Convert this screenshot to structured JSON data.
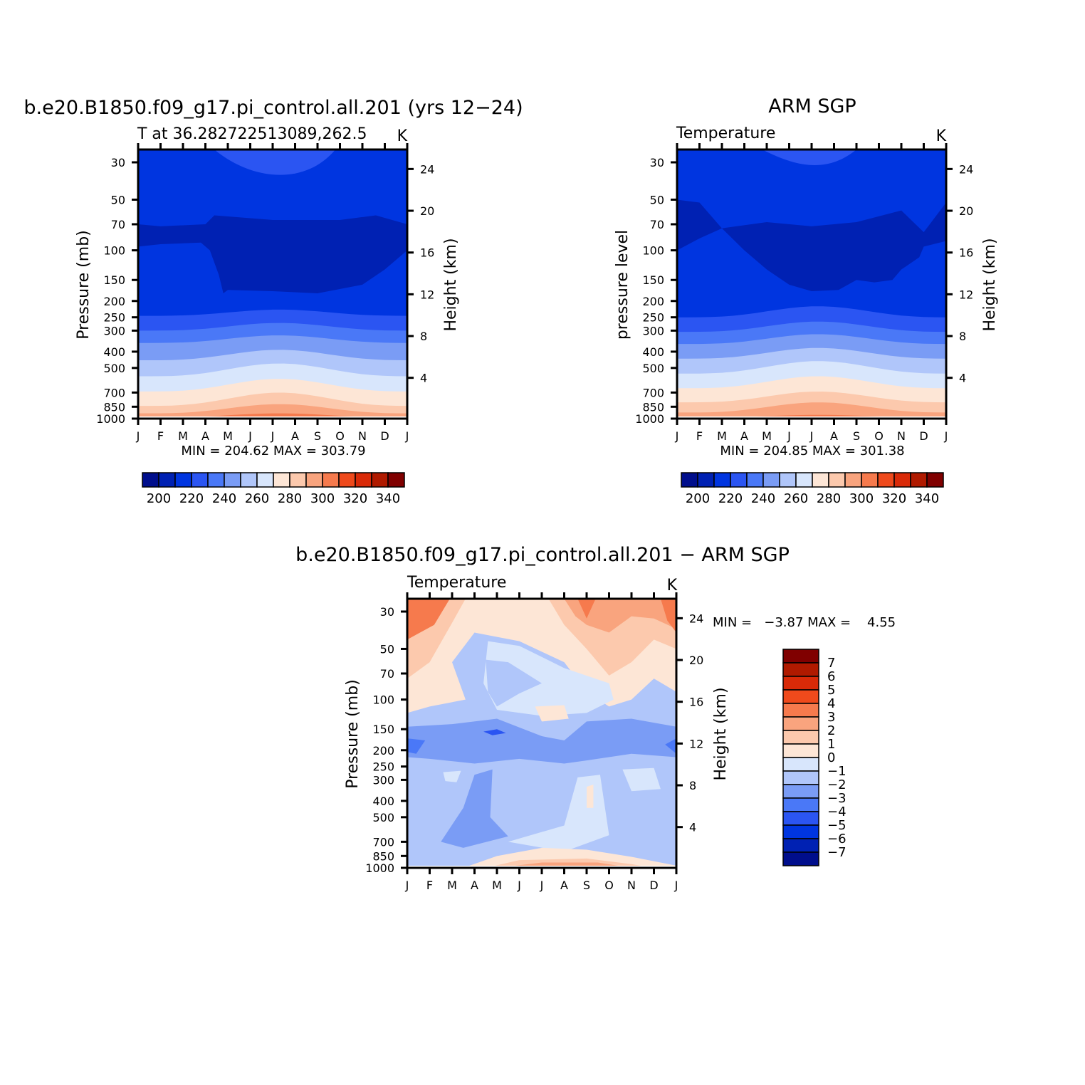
{
  "month_labels": [
    "J",
    "F",
    "M",
    "A",
    "M",
    "J",
    "J",
    "A",
    "S",
    "O",
    "N",
    "D",
    "J"
  ],
  "pressure_ticks": [
    30,
    50,
    70,
    100,
    150,
    200,
    250,
    300,
    400,
    500,
    700,
    850,
    1000
  ],
  "height_ticks": [
    4,
    8,
    12,
    16,
    20,
    24
  ],
  "right_axis_label": "Height (km)",
  "abs_palette": [
    "#000e8c",
    "#0021b3",
    "#0035e0",
    "#2b55f2",
    "#4a78f7",
    "#7a9cf5",
    "#b0c6fa",
    "#d8e6fc",
    "#fde6d6",
    "#fcc9ad",
    "#f9a47e",
    "#f67a4d",
    "#ef4a1c",
    "#d92a08",
    "#b01a00",
    "#800000"
  ],
  "diff_palette": [
    "#000e8c",
    "#0021b3",
    "#0035e0",
    "#2b55f2",
    "#4a78f7",
    "#7a9cf5",
    "#b0c6fa",
    "#d8e6fc",
    "#fde6d6",
    "#fcc9ad",
    "#f9a47e",
    "#f67a4d",
    "#ef4a1c",
    "#d92a08",
    "#b01a00",
    "#800000"
  ],
  "panels": [
    {
      "id": "model",
      "title": "b.e20.B1850.f09_g17.pi_control.all.201 (yrs 12−24)",
      "left_label": "T at 36.282722513089,262.5",
      "units": "K",
      "y_axis_label": "Pressure (mb)",
      "stats": "MIN = 204.62 MAX = 303.79",
      "colorbar_labels": [
        "200",
        "220",
        "240",
        "260",
        "280",
        "300",
        "320",
        "340"
      ]
    },
    {
      "id": "obs",
      "title": "ARM SGP",
      "left_label": "Temperature",
      "units": "K",
      "y_axis_label": "pressure level",
      "stats": "MIN = 204.85 MAX = 301.38",
      "colorbar_labels": [
        "200",
        "220",
        "240",
        "260",
        "280",
        "300",
        "320",
        "340"
      ]
    },
    {
      "id": "diff",
      "title": "b.e20.B1850.f09_g17.pi_control.all.201 − ARM SGP",
      "left_label": "Temperature",
      "units": "K",
      "y_axis_label": "Pressure (mb)",
      "stats": "MIN =   −3.87 MAX =    4.55",
      "colorbar_labels": [
        "7",
        "6",
        "5",
        "4",
        "3",
        "2",
        "1",
        "0",
        "−1",
        "−2",
        "−3",
        "−4",
        "−5",
        "−6",
        "−7"
      ]
    }
  ],
  "chart_data": [
    {
      "type": "heatmap",
      "title": "b.e20.B1850.f09_g17.pi_control.all.201 (yrs 12−24)",
      "variable": "T at 36.282722513089,262.5",
      "units": "K",
      "x": [
        "J",
        "F",
        "M",
        "A",
        "M",
        "J",
        "J",
        "A",
        "S",
        "O",
        "N",
        "D",
        "J"
      ],
      "y_pressure_mb": [
        30,
        50,
        70,
        100,
        150,
        200,
        250,
        300,
        400,
        500,
        700,
        850,
        1000
      ],
      "contour_levels": [
        200,
        210,
        220,
        230,
        240,
        250,
        260,
        270,
        280,
        290,
        300,
        310,
        320,
        330,
        340
      ],
      "min": 204.62,
      "max": 303.79,
      "ylabel": "Pressure (mb)",
      "ylabel_right": "Height (km)"
    },
    {
      "type": "heatmap",
      "title": "ARM SGP",
      "variable": "Temperature",
      "units": "K",
      "x": [
        "J",
        "F",
        "M",
        "A",
        "M",
        "J",
        "J",
        "A",
        "S",
        "O",
        "N",
        "D",
        "J"
      ],
      "y_pressure_mb": [
        30,
        50,
        70,
        100,
        150,
        200,
        250,
        300,
        400,
        500,
        700,
        850,
        1000
      ],
      "contour_levels": [
        200,
        210,
        220,
        230,
        240,
        250,
        260,
        270,
        280,
        290,
        300,
        310,
        320,
        330,
        340
      ],
      "min": 204.85,
      "max": 301.38,
      "ylabel": "pressure level",
      "ylabel_right": "Height (km)"
    },
    {
      "type": "heatmap",
      "title": "b.e20.B1850.f09_g17.pi_control.all.201 − ARM SGP",
      "variable": "Temperature",
      "units": "K",
      "x": [
        "J",
        "F",
        "M",
        "A",
        "M",
        "J",
        "J",
        "A",
        "S",
        "O",
        "N",
        "D",
        "J"
      ],
      "y_pressure_mb": [
        30,
        50,
        70,
        100,
        150,
        200,
        250,
        300,
        400,
        500,
        700,
        850,
        1000
      ],
      "contour_levels": [
        -7,
        -6,
        -5,
        -4,
        -3,
        -2,
        -1,
        0,
        1,
        2,
        3,
        4,
        5,
        6,
        7
      ],
      "min": -3.87,
      "max": 4.55,
      "ylabel": "Pressure (mb)",
      "ylabel_right": "Height (km)"
    }
  ]
}
